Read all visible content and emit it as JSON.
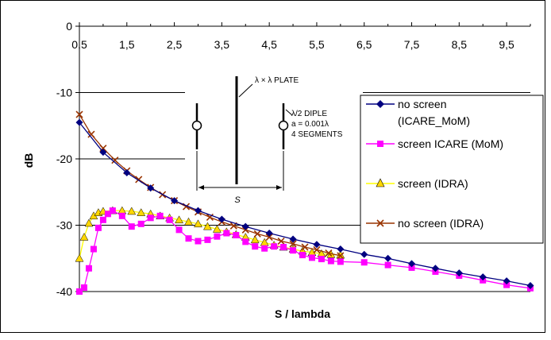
{
  "chart_data": {
    "type": "line",
    "title": "",
    "xlabel": "S / lambda",
    "ylabel": "dB",
    "xlim": [
      0.5,
      10
    ],
    "ylim": [
      -40,
      0
    ],
    "x_ticks": [
      "0,5",
      "1,5",
      "2,5",
      "3,5",
      "4,5",
      "5,5",
      "6,5",
      "7,5",
      "8,5",
      "9,5"
    ],
    "y_ticks": [
      "0",
      "-10",
      "-20",
      "-30",
      "-40"
    ],
    "grid": "horizontal",
    "legend_position": "right",
    "series": [
      {
        "name": "no screen (ICARE_MoM)",
        "color": "#000080",
        "marker": "diamond",
        "x": [
          0.5,
          1.0,
          1.5,
          2.0,
          2.5,
          3.0,
          3.5,
          4.0,
          4.5,
          5.0,
          5.5,
          6.0,
          6.5,
          7.0,
          7.5,
          8.0,
          8.5,
          9.0,
          9.5,
          10.0
        ],
        "values": [
          -14.5,
          -19.0,
          -22.1,
          -24.4,
          -26.3,
          -27.8,
          -29.1,
          -30.2,
          -31.2,
          -32.1,
          -32.9,
          -33.6,
          -34.4,
          -35.0,
          -35.8,
          -36.5,
          -37.2,
          -37.8,
          -38.4,
          -39.1
        ]
      },
      {
        "name": "screen ICARE (MoM)",
        "color": "#ff00ff",
        "marker": "square",
        "x": [
          0.5,
          0.6,
          0.7,
          0.8,
          0.9,
          1.0,
          1.1,
          1.2,
          1.4,
          1.6,
          1.8,
          2.0,
          2.2,
          2.4,
          2.6,
          2.8,
          3.0,
          3.2,
          3.4,
          3.6,
          3.8,
          4.0,
          4.2,
          4.4,
          4.6,
          4.8,
          5.0,
          5.2,
          5.4,
          5.6,
          5.8,
          6.0,
          6.5,
          7.0,
          7.5,
          8.0,
          8.5,
          9.0,
          9.5,
          10.0
        ],
        "values": [
          -40.0,
          -39.4,
          -36.5,
          -33.6,
          -30.4,
          -29.2,
          -28.3,
          -27.8,
          -28.6,
          -30.2,
          -29.8,
          -28.9,
          -28.6,
          -29.2,
          -30.7,
          -32.0,
          -32.4,
          -32.2,
          -31.7,
          -31.2,
          -31.5,
          -32.5,
          -33.2,
          -33.5,
          -33.2,
          -33.3,
          -33.8,
          -34.5,
          -34.9,
          -35.1,
          -35.4,
          -35.5,
          -35.6,
          -36.0,
          -36.4,
          -37.0,
          -37.6,
          -38.3,
          -39.0,
          -39.5
        ]
      },
      {
        "name": "screen (IDRA)",
        "color": "#ffff00",
        "marker": "triangle",
        "x": [
          0.5,
          0.6,
          0.7,
          0.8,
          0.9,
          1.0,
          1.2,
          1.4,
          1.6,
          1.8,
          2.0,
          2.2,
          2.4,
          2.6,
          2.8,
          3.0,
          3.2,
          3.4,
          3.6,
          3.8,
          4.0,
          4.2,
          4.4,
          4.6,
          4.8,
          5.0,
          5.2,
          5.4,
          5.6,
          5.8,
          6.0
        ],
        "values": [
          -35.0,
          -31.8,
          -29.7,
          -28.6,
          -28.1,
          -27.9,
          -27.8,
          -27.8,
          -27.9,
          -28.1,
          -28.3,
          -28.6,
          -28.9,
          -29.2,
          -29.5,
          -29.8,
          -30.2,
          -30.6,
          -31.0,
          -31.4,
          -31.8,
          -32.2,
          -32.6,
          -33.0,
          -33.3,
          -33.6,
          -33.9,
          -34.1,
          -34.3,
          -34.4,
          -34.5
        ]
      },
      {
        "name": "no screen (IDRA)",
        "color": "#993300",
        "marker": "x",
        "x": [
          0.5,
          0.75,
          1.0,
          1.25,
          1.5,
          1.75,
          2.0,
          2.25,
          2.5,
          2.75,
          3.0,
          3.25,
          3.5,
          3.75,
          4.0,
          4.25,
          4.5,
          4.75,
          5.0,
          5.25,
          5.5,
          5.75,
          6.0
        ],
        "values": [
          -13.3,
          -16.3,
          -18.4,
          -20.2,
          -21.8,
          -23.1,
          -24.3,
          -25.4,
          -26.3,
          -27.2,
          -28.0,
          -28.8,
          -29.5,
          -30.1,
          -30.7,
          -31.3,
          -31.8,
          -32.4,
          -32.8,
          -33.3,
          -33.7,
          -34.2,
          -34.6
        ]
      }
    ]
  },
  "inset": {
    "plate_label": "λ × λ PLATE",
    "dipole_line1": "λ/2 DIPLE",
    "dipole_line2": "a = 0.001λ",
    "dipole_line3": "4 SEGMENTS",
    "spacing_label": "S"
  },
  "legend": {
    "items": [
      {
        "line1": "no screen",
        "line2": "(ICARE_MoM)",
        "color": "#000080",
        "marker": "diamond"
      },
      {
        "line1": "screen ICARE (MoM)",
        "line2": "",
        "color": "#ff00ff",
        "marker": "square"
      },
      {
        "line1": "screen (IDRA)",
        "line2": "",
        "color": "#ffff00",
        "marker": "triangle"
      },
      {
        "line1": "no screen (IDRA)",
        "line2": "",
        "color": "#993300",
        "marker": "x"
      }
    ]
  }
}
